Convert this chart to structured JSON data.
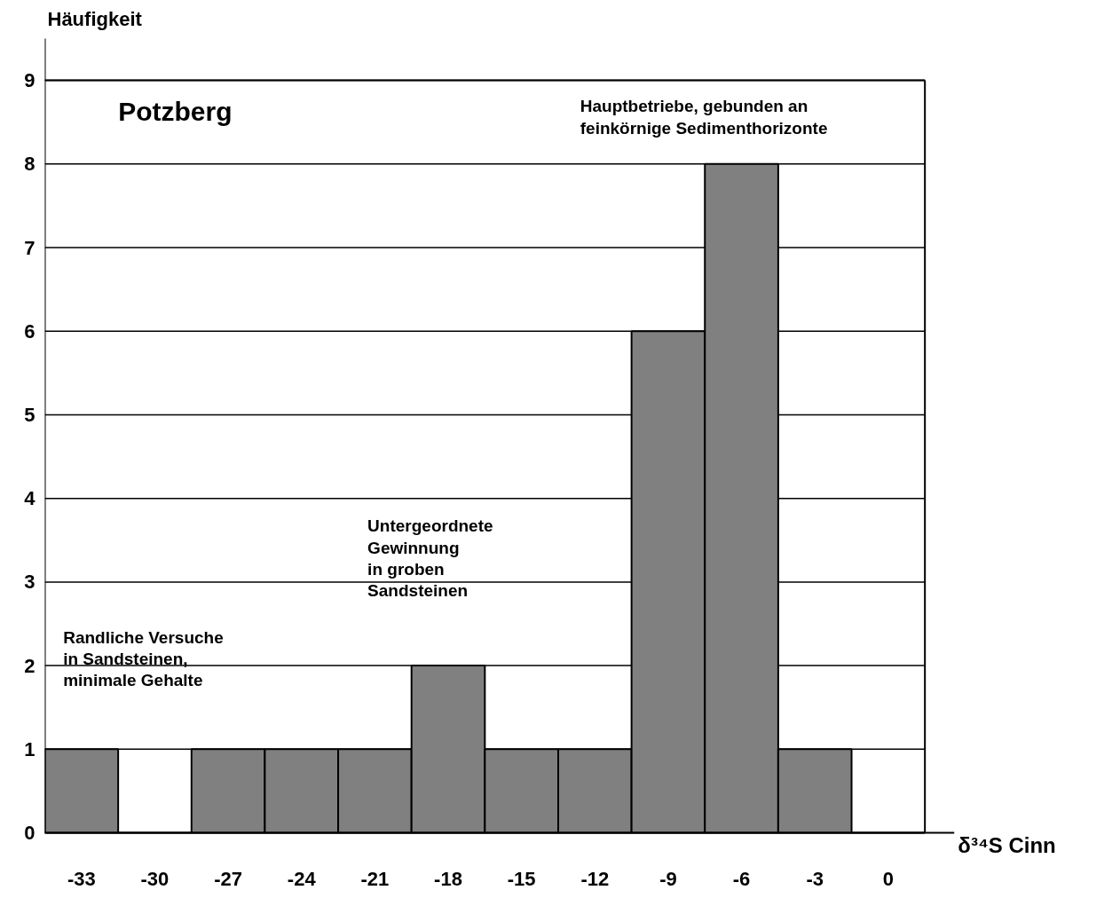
{
  "chart_data": {
    "type": "bar",
    "title": "Potzberg",
    "xlabel": "δ³⁴S Cinn",
    "ylabel": "Häufigkeit",
    "categories": [
      "-33",
      "-30",
      "-27",
      "-24",
      "-21",
      "-18",
      "-15",
      "-12",
      "-9",
      "-6",
      "-3",
      "0"
    ],
    "values": [
      1,
      0,
      1,
      1,
      1,
      2,
      1,
      1,
      6,
      8,
      1,
      0
    ],
    "color": "#808080",
    "ylim": [
      0,
      9
    ],
    "yticks": [
      0,
      1,
      2,
      3,
      4,
      5,
      6,
      7,
      8,
      9
    ],
    "grid": "y",
    "annotations": [
      "Randliche Versuche\nin Sandsteinen,\nminimale Gehalte",
      "Untergeordnete\nGewinnung\nin groben\nSandsteinen",
      "Hauptbetriebe, gebunden an\nfeinkörnige Sedimenthorizonte"
    ]
  }
}
